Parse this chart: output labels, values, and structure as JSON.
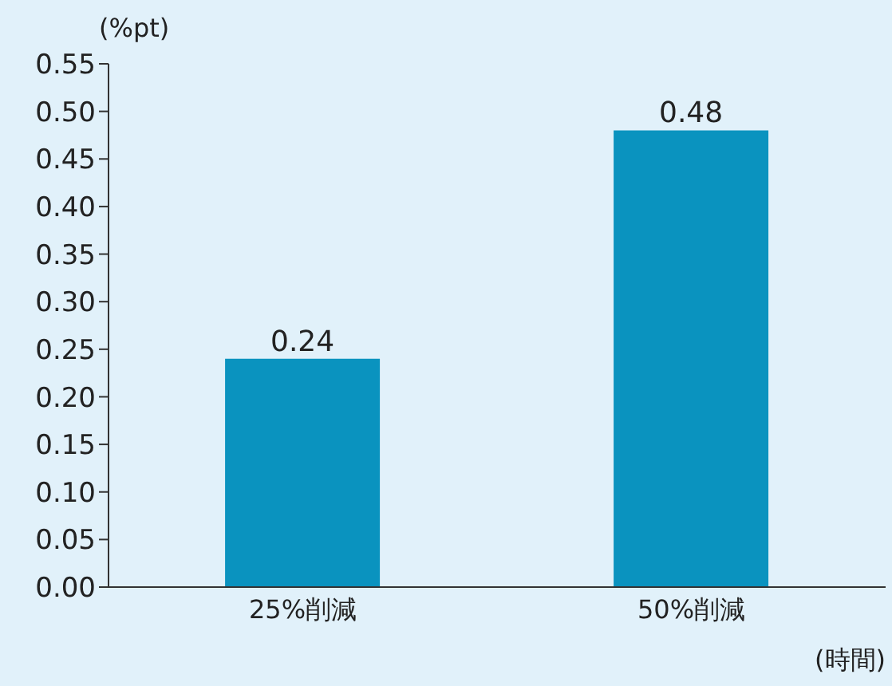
{
  "chart_data": {
    "type": "bar",
    "categories": [
      "25%削減",
      "50%削減"
    ],
    "values": [
      0.24,
      0.48
    ],
    "color": "#0a93bf",
    "ylabel": "(%pt)",
    "xlabel": "(時間)",
    "ylim": [
      0,
      0.55
    ],
    "yticks": [
      {
        "value": 0,
        "label": "0.00"
      },
      {
        "value": 0.05,
        "label": "0.05"
      },
      {
        "value": 0.1,
        "label": "0.10"
      },
      {
        "value": 0.15,
        "label": "0.15"
      },
      {
        "value": 0.2,
        "label": "0.20"
      },
      {
        "value": 0.25,
        "label": "0.25"
      },
      {
        "value": 0.3,
        "label": "0.30"
      },
      {
        "value": 0.35,
        "label": "0.35"
      },
      {
        "value": 0.4,
        "label": "0.40"
      },
      {
        "value": 0.45,
        "label": "0.45"
      },
      {
        "value": 0.5,
        "label": "0.50"
      },
      {
        "value": 0.55,
        "label": "0.55"
      }
    ],
    "data_labels": true
  }
}
